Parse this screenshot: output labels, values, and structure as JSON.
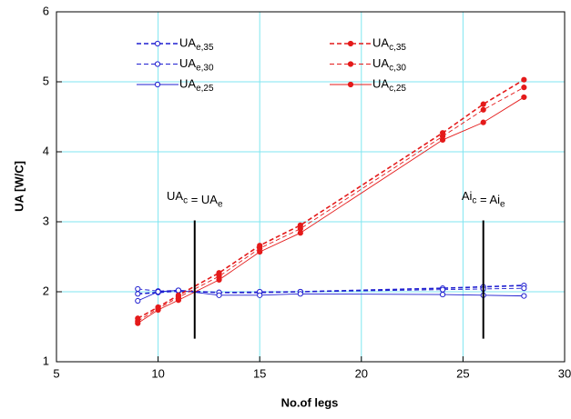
{
  "chart_data": {
    "type": "line",
    "xlabel": "No.of legs",
    "ylabel": "UA  [W/C]",
    "x": [
      9,
      10,
      11,
      13,
      15,
      17,
      24,
      26,
      28
    ],
    "series": [
      {
        "name": "UAe,35",
        "color": "#1f1fd0",
        "style": "dashed",
        "width": 1.6,
        "filled": false,
        "values": [
          1.97,
          1.99,
          2.01,
          1.99,
          1.99,
          2.0,
          2.05,
          2.07,
          2.09
        ]
      },
      {
        "name": "UAe,30",
        "color": "#1f1fd0",
        "style": "dashed",
        "width": 0.9,
        "filled": false,
        "values": [
          2.04,
          2.01,
          2.02,
          1.99,
          2.0,
          2.0,
          2.03,
          2.04,
          2.05
        ]
      },
      {
        "name": "UAe,25",
        "color": "#1f1fd0",
        "style": "solid",
        "width": 0.9,
        "filled": false,
        "values": [
          1.87,
          2.0,
          2.02,
          1.95,
          1.95,
          1.97,
          1.96,
          1.95,
          1.94
        ]
      },
      {
        "name": "UAc,35",
        "color": "#e41a1a",
        "style": "dashed",
        "width": 1.6,
        "filled": true,
        "values": [
          1.62,
          1.78,
          1.95,
          2.27,
          2.66,
          2.95,
          4.27,
          4.68,
          5.03
        ]
      },
      {
        "name": "UAc,30",
        "color": "#e41a1a",
        "style": "dashed",
        "width": 0.9,
        "filled": true,
        "values": [
          1.58,
          1.76,
          1.92,
          2.22,
          2.62,
          2.9,
          4.22,
          4.6,
          4.92
        ]
      },
      {
        "name": "UAc,25",
        "color": "#e41a1a",
        "style": "solid",
        "width": 0.9,
        "filled": true,
        "values": [
          1.55,
          1.74,
          1.88,
          2.17,
          2.57,
          2.84,
          4.17,
          4.42,
          4.78
        ]
      }
    ],
    "annotations": [
      {
        "text": "UAc = UAe",
        "x": 11.8,
        "ymin": 1.33,
        "ymax": 3.02
      },
      {
        "text": "Aic = Aie",
        "x": 26,
        "ymin": 1.33,
        "ymax": 3.02
      }
    ],
    "xlim": [
      5,
      30
    ],
    "xticks": [
      5,
      10,
      15,
      20,
      25,
      30
    ],
    "ylim": [
      1,
      6
    ],
    "yticks": [
      1,
      2,
      3,
      4,
      5,
      6
    ],
    "grid": true,
    "grid_color": "#7fe6f0"
  }
}
